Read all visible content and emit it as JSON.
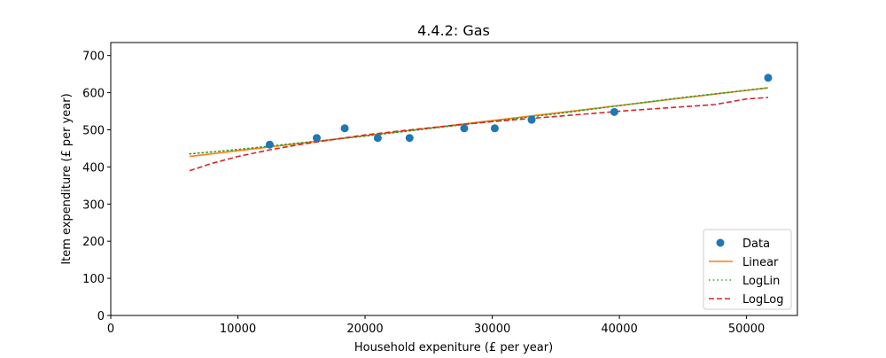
{
  "chart_data": {
    "type": "scatter",
    "title": "4.4.2: Gas",
    "xlabel": "Household expeniture (£ per year)",
    "ylabel": "Item expenditure (£ per year)",
    "xlim": [
      0,
      54000
    ],
    "ylim": [
      0,
      735
    ],
    "xticks": [
      0,
      10000,
      20000,
      30000,
      40000,
      50000
    ],
    "xtick_labels": [
      "0",
      "10000",
      "20000",
      "30000",
      "40000",
      "50000"
    ],
    "yticks": [
      0,
      100,
      200,
      300,
      400,
      500,
      600,
      700
    ],
    "ytick_labels": [
      "0",
      "100",
      "200",
      "300",
      "400",
      "500",
      "600",
      "700"
    ],
    "grid": false,
    "legend_position": "lower-right",
    "series": [
      {
        "name": "Data",
        "kind": "points",
        "color": "#1f77b4",
        "x": [
          12500,
          16200,
          18400,
          21000,
          23500,
          27800,
          30200,
          33100,
          39600,
          51700
        ],
        "y": [
          460,
          478,
          504,
          478,
          478,
          504,
          504,
          527,
          548,
          640
        ]
      },
      {
        "name": "Linear",
        "kind": "line",
        "style": "solid",
        "color": "#ff7f0e",
        "x": [
          6200,
          51700
        ],
        "y": [
          428,
          613
        ]
      },
      {
        "name": "LogLin",
        "kind": "line",
        "style": "dotted",
        "color": "#2ca02c",
        "x": [
          6200,
          10000,
          15000,
          20000,
          25000,
          30000,
          35000,
          40000,
          45000,
          51700
        ],
        "y": [
          435,
          447,
          465,
          483,
          503,
          523,
          543,
          565,
          587,
          613
        ]
      },
      {
        "name": "LogLog",
        "kind": "line",
        "style": "dashed",
        "color": "#d62728",
        "x": [
          6200,
          8000,
          10000,
          12500,
          15000,
          17500,
          20000,
          22500,
          25000,
          27500,
          30000,
          32500,
          35000,
          37500,
          40000,
          42500,
          45000,
          47500,
          50000,
          51700
        ],
        "y": [
          390,
          410,
          428,
          446,
          461,
          474,
          486,
          496,
          505,
          514,
          522,
          529,
          536,
          543,
          550,
          556,
          562,
          568,
          583,
          587
        ]
      }
    ]
  }
}
